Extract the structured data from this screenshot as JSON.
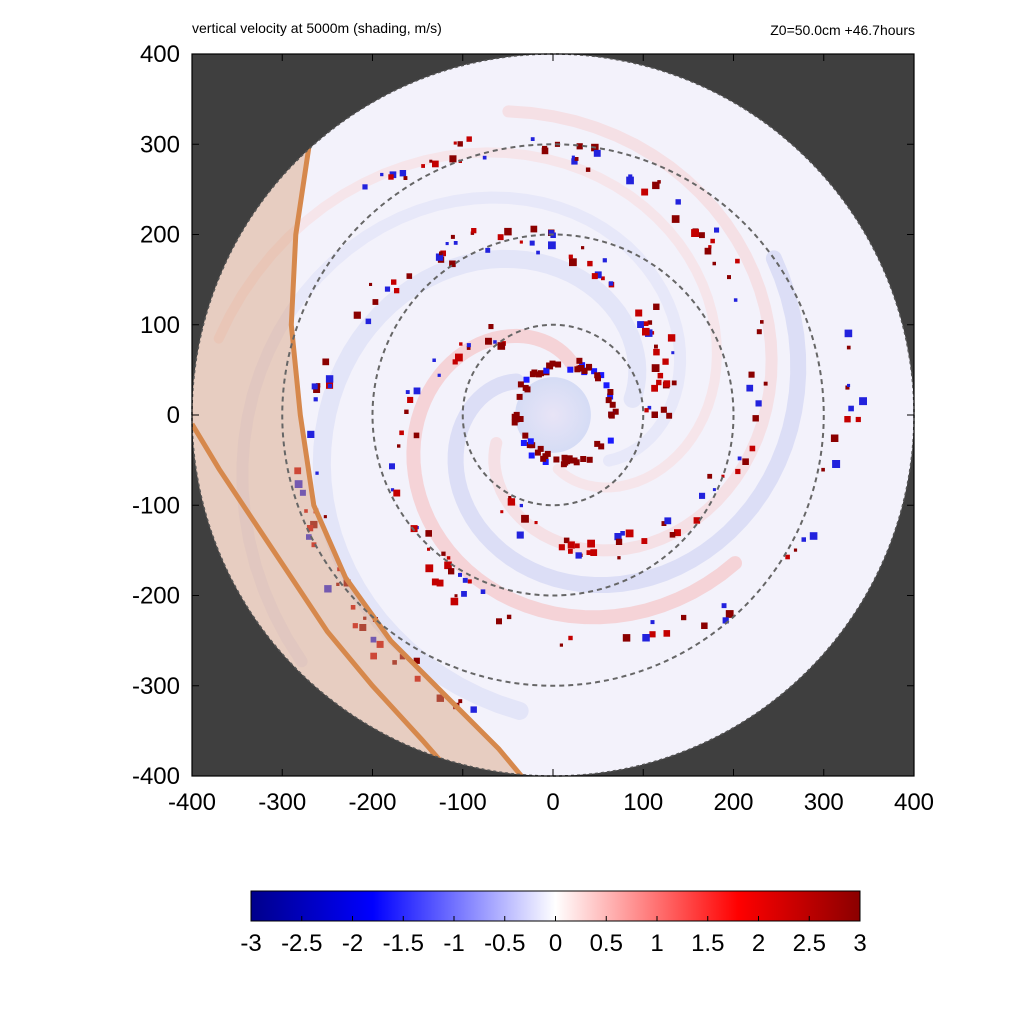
{
  "title_left": "vertical velocity at 5000m (shading, m/s)",
  "title_right": "Z0=50.0cm  +46.7hours",
  "chart_data": {
    "type": "heatmap",
    "title": "vertical velocity at 5000m (shading, m/s)",
    "annotation": "Z0=50.0cm  +46.7hours",
    "xlim": [
      -400,
      400
    ],
    "ylim": [
      -400,
      400
    ],
    "x_ticks": [
      "-400",
      "-300",
      "-200",
      "-100",
      "0",
      "100",
      "200",
      "300",
      "400"
    ],
    "y_ticks": [
      "400",
      "300",
      "200",
      "100",
      "0",
      "-100",
      "-200",
      "-300",
      "-400"
    ],
    "domain_radius": 400,
    "range_rings_radius": [
      100,
      200,
      300
    ],
    "colorbar": {
      "min": -3,
      "max": 3,
      "ticks": [
        "-3",
        "-2.5",
        "-2",
        "-1.5",
        "-1",
        "-0.5",
        "0",
        "0.5",
        "1",
        "1.5",
        "2",
        "2.5",
        "3"
      ],
      "colors": [
        "#00008b",
        "#0000ff",
        "#ffffff",
        "#ff0000",
        "#8b0000"
      ]
    },
    "background_color": "#3f3f3f",
    "land_color": "#d9a07a",
    "coastline_color": "#d6884c"
  }
}
